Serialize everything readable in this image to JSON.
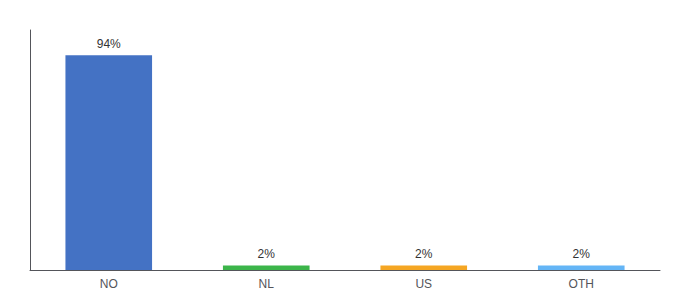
{
  "chart_data": {
    "type": "bar",
    "categories": [
      "NO",
      "NL",
      "US",
      "OTH"
    ],
    "values": [
      94,
      2,
      2,
      2
    ],
    "value_labels": [
      "94%",
      "2%",
      "2%",
      "2%"
    ],
    "data_labels": true,
    "colors": [
      "#4472c4",
      "#3cb54a",
      "#f5a623",
      "#64b5f6"
    ],
    "ylim": [
      0,
      105
    ],
    "tick_labels": "x",
    "grid": false
  }
}
